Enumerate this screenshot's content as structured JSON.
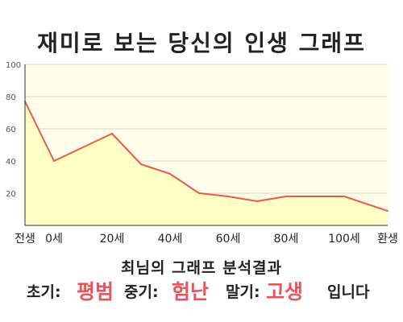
{
  "title": "재미로 보는 당신의 인생 그래프",
  "chart_data": {
    "type": "area",
    "x": [
      -10,
      0,
      20,
      30,
      40,
      50,
      60,
      70,
      80,
      90,
      100,
      115
    ],
    "values": [
      77,
      40,
      57,
      38,
      32,
      20,
      18,
      15,
      18,
      18,
      18,
      9
    ],
    "ylim": [
      0,
      100
    ],
    "yticks": [
      20,
      40,
      60,
      80,
      100
    ],
    "xticks": [
      {
        "x": -10,
        "label": "전생"
      },
      {
        "x": 0,
        "label": "0세"
      },
      {
        "x": 20,
        "label": "20세"
      },
      {
        "x": 40,
        "label": "40세"
      },
      {
        "x": 60,
        "label": "60세"
      },
      {
        "x": 80,
        "label": "80세"
      },
      {
        "x": 100,
        "label": "100세"
      },
      {
        "x": 115,
        "label": "환생"
      }
    ],
    "grid": true,
    "colors": {
      "line": "#e35a5a",
      "fill": "#ffffc4",
      "background": "#fefee8",
      "grid": "#d8d8c0",
      "axis": "#333333"
    }
  },
  "summary": {
    "title": "최님의 그래프 분석결과",
    "early_label": "초기:",
    "early_value": "평범",
    "middle_label": "중기:",
    "middle_value": "험난",
    "late_label": "말기:",
    "late_value": "고생",
    "ending": "입니다"
  }
}
